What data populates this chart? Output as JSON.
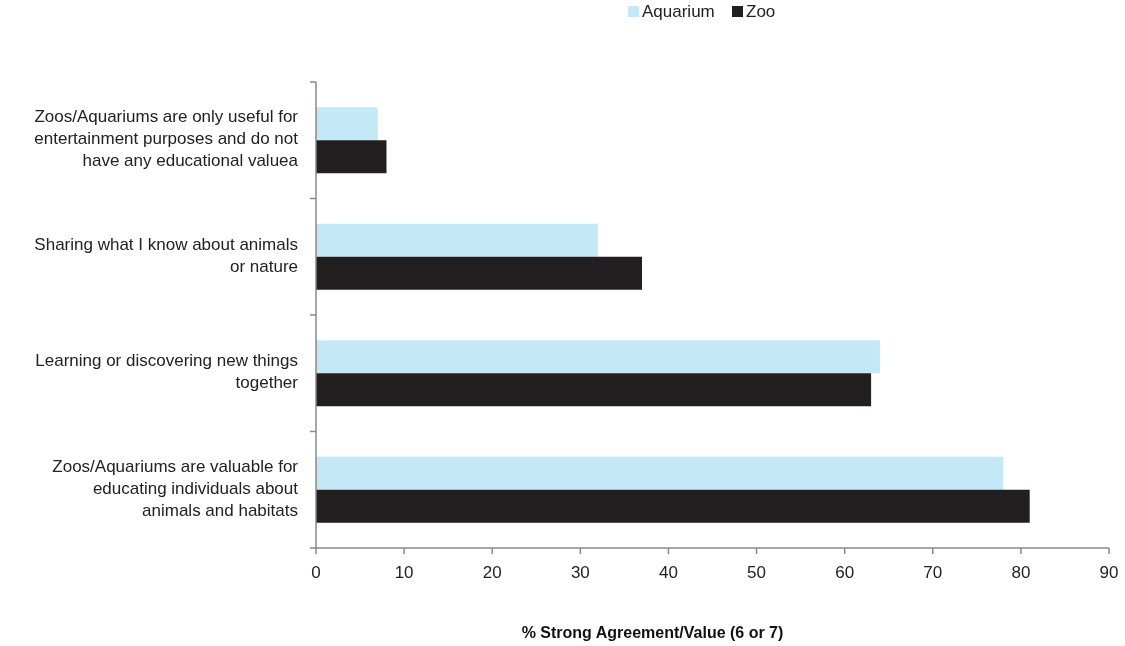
{
  "chart_data": {
    "type": "bar",
    "orientation": "horizontal",
    "xlabel": "% Strong Agreement/Value (6 or 7)",
    "categories": [
      "Zoos/Aquariums are only useful for entertainment purposes and do not have any educational valuea",
      "Sharing what I know about animals or nature",
      "Learning or discovering new things together",
      "Zoos/Aquariums are valuable for educating individuals about animals and habitats"
    ],
    "series": [
      {
        "name": "Aquarium",
        "color": "#c5e8f7",
        "values": [
          7,
          32,
          64,
          78
        ]
      },
      {
        "name": "Zoo",
        "color": "#231f20",
        "values": [
          8,
          37,
          63,
          81
        ]
      }
    ],
    "xlim": [
      0,
      90
    ],
    "xticks": [
      0,
      10,
      20,
      30,
      40,
      50,
      60,
      70,
      80,
      90
    ],
    "grid": false,
    "legend": "top"
  }
}
